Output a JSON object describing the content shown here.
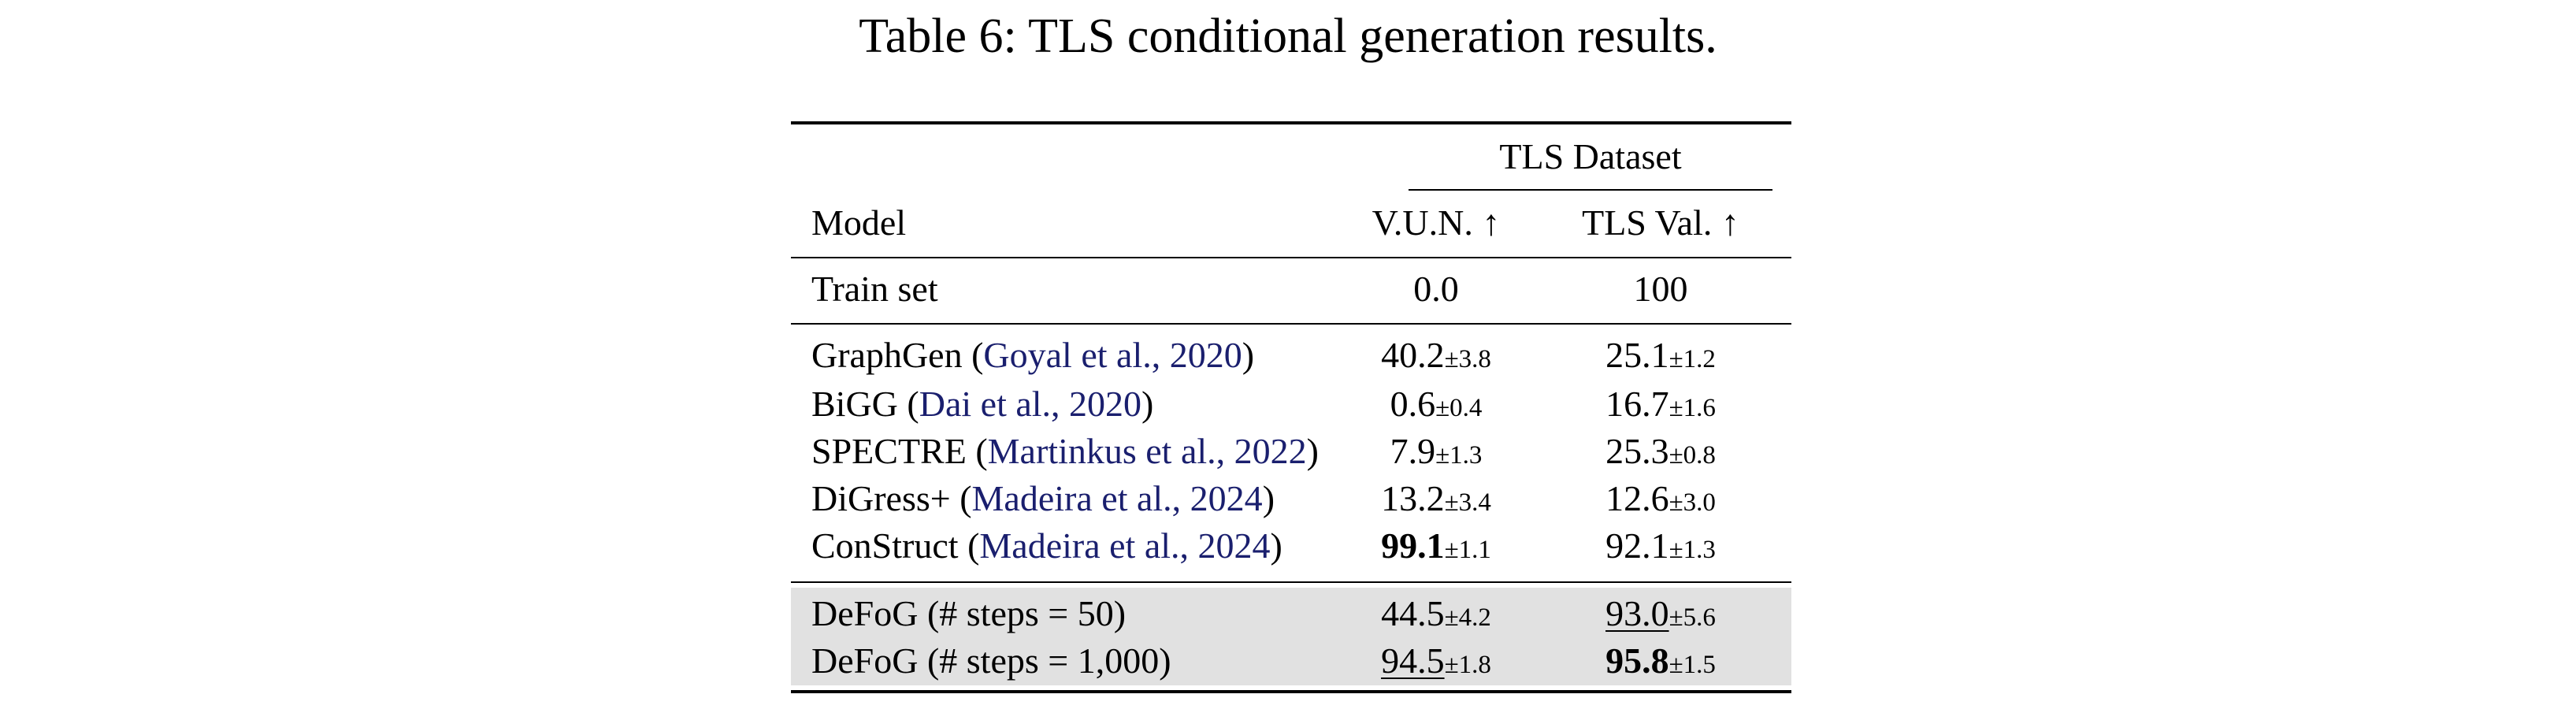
{
  "caption": "Table 6: TLS conditional generation results.",
  "header": {
    "group": "TLS Dataset",
    "model": "Model",
    "col1": "V.U.N.",
    "col2": "TLS Val.",
    "arrow": "↑"
  },
  "train": {
    "model": "Train set",
    "v1": "0.0",
    "v2": "100"
  },
  "baselines": [
    {
      "name": "GraphGen",
      "open": " (",
      "cite": "Goyal et al., 2020",
      "close": ")",
      "v1": "40.2",
      "s1": "±3.8",
      "v2": "25.1",
      "s2": "±1.2"
    },
    {
      "name": "BiGG",
      "open": " (",
      "cite": "Dai et al., 2020",
      "close": ")",
      "v1": "0.6",
      "s1": "±0.4",
      "v2": "16.7",
      "s2": "±1.6"
    },
    {
      "name": "SPECTRE",
      "open": " (",
      "cite": "Martinkus et al., 2022",
      "close": ")",
      "v1": "7.9",
      "s1": "±1.3",
      "v2": "25.3",
      "s2": "±0.8"
    },
    {
      "name": "DiGress+",
      "open": " (",
      "cite": "Madeira et al., 2024",
      "close": ")",
      "v1": "13.2",
      "s1": "±3.4",
      "v2": "12.6",
      "s2": "±3.0"
    },
    {
      "name": "ConStruct",
      "open": " (",
      "cite": "Madeira et al., 2024",
      "close": ")",
      "v1": "99.1",
      "s1": "±1.1",
      "v2": "92.1",
      "s2": "±1.3"
    }
  ],
  "ours": [
    {
      "name": "DeFoG (# steps = 50)",
      "v1": "44.5",
      "s1": "±4.2",
      "v2": "93.0",
      "s2": "±5.6"
    },
    {
      "name": "DeFoG (# steps = 1,000)",
      "v1": "94.5",
      "s1": "±1.8",
      "v2": "95.8",
      "s2": "±1.5"
    }
  ]
}
